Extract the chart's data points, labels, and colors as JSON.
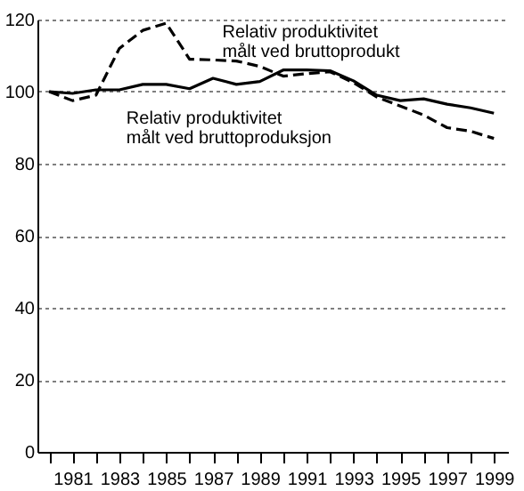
{
  "chart_data": {
    "type": "line",
    "x": [
      1980,
      1981,
      1982,
      1983,
      1984,
      1985,
      1986,
      1987,
      1988,
      1989,
      1990,
      1991,
      1992,
      1993,
      1994,
      1995,
      1996,
      1997,
      1998,
      1999
    ],
    "series": [
      {
        "name": "Relativ produktivitet\nmålt ved bruttoprodukt",
        "color": "#000000",
        "line_style": "dashed",
        "values": [
          100,
          97.5,
          99,
          112,
          117,
          119,
          109,
          108.8,
          108.5,
          107,
          104.3,
          105,
          105.5,
          102.5,
          98.5,
          96,
          93.5,
          90,
          89,
          87
        ]
      },
      {
        "name": "Relativ produktivitet\nmålt ved bruttoproduksjon",
        "color": "#000000",
        "line_style": "solid",
        "values": [
          100,
          99.5,
          100.5,
          100.5,
          102,
          102,
          100.8,
          103.7,
          102,
          102.8,
          106,
          106,
          105.8,
          103,
          99,
          97.5,
          98,
          96.5,
          95.5,
          94
        ]
      }
    ],
    "xlim": [
      1979.5,
      1999.6
    ],
    "xticks": [
      {
        "value": 1980,
        "label": null
      },
      1981,
      {
        "value": 1982,
        "label": null
      },
      1983,
      {
        "value": 1984,
        "label": null
      },
      1985,
      {
        "value": 1986,
        "label": null
      },
      1987,
      {
        "value": 1988,
        "label": null
      },
      1989,
      {
        "value": 1990,
        "label": null
      },
      1991,
      {
        "value": 1992,
        "label": null
      },
      1993,
      {
        "value": 1994,
        "label": null
      },
      1995,
      {
        "value": 1996,
        "label": null
      },
      1997,
      {
        "value": 1998,
        "label": null
      },
      1999
    ],
    "ylim": [
      0,
      120
    ],
    "yticks": [
      0,
      20,
      40,
      60,
      80,
      100,
      120
    ],
    "grid": "y",
    "marker": "none"
  }
}
